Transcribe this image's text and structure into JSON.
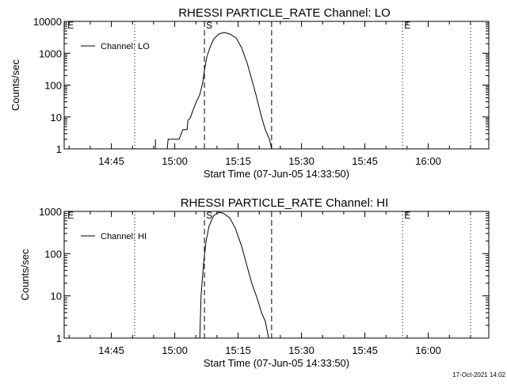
{
  "chart_data": [
    {
      "type": "line",
      "title": "RHESSI PARTICLE_RATE Channel: LO",
      "xlabel": "Start Time (07-Jun-05 14:33:50)",
      "ylabel": "Counts/sec",
      "x_units": "minutes since 14:33:50",
      "xlim": [
        0,
        100.5
      ],
      "ylim": [
        1,
        10000
      ],
      "yscale": "log",
      "x_ticks": [
        {
          "v": 11.17,
          "label": "14:45"
        },
        {
          "v": 26.17,
          "label": "15:00"
        },
        {
          "v": 41.17,
          "label": "15:15"
        },
        {
          "v": 56.17,
          "label": "15:30"
        },
        {
          "v": 71.17,
          "label": "15:45"
        },
        {
          "v": 86.17,
          "label": "16:00"
        }
      ],
      "y_ticks": [
        {
          "v": 1,
          "label": "1"
        },
        {
          "v": 10,
          "label": "10"
        },
        {
          "v": 100,
          "label": "100"
        },
        {
          "v": 1000,
          "label": "1000"
        },
        {
          "v": 10000,
          "label": "10000"
        }
      ],
      "legend": {
        "label": "Channel: LO",
        "placement": "top-left"
      },
      "markers": [
        {
          "x": 0.4,
          "style": "none",
          "label": "E"
        },
        {
          "x": 16.7,
          "style": "dotted",
          "label": ""
        },
        {
          "x": 33.2,
          "style": "dashed",
          "label": "S"
        },
        {
          "x": 49.1,
          "style": "dashed",
          "label": ""
        },
        {
          "x": 80.1,
          "style": "dotted",
          "label": "E"
        },
        {
          "x": 96.2,
          "style": "dotted",
          "label": ""
        }
      ],
      "segments": [
        [
          [
            21.6,
            1
          ],
          [
            21.6,
            2
          ]
        ],
        [
          [
            24.4,
            1
          ],
          [
            24.6,
            2
          ],
          [
            27.2,
            2
          ],
          [
            27.7,
            3
          ],
          [
            28.1,
            4
          ],
          [
            29.1,
            4
          ],
          [
            29.3,
            8
          ],
          [
            29.8,
            9
          ],
          [
            30.4,
            15
          ],
          [
            31.3,
            30
          ],
          [
            32.1,
            50
          ],
          [
            32.8,
            120
          ],
          [
            33.2,
            300
          ],
          [
            33.8,
            800
          ],
          [
            34.5,
            1500
          ],
          [
            35.4,
            2800
          ],
          [
            36.6,
            4000
          ],
          [
            37.9,
            4500
          ],
          [
            39.2,
            4000
          ],
          [
            40.7,
            3000
          ],
          [
            42.0,
            1500
          ],
          [
            43.3,
            500
          ],
          [
            44.4,
            150
          ],
          [
            45.4,
            50
          ],
          [
            46.7,
            10
          ],
          [
            47.6,
            4
          ],
          [
            48.6,
            2
          ],
          [
            49.1,
            1
          ]
        ]
      ]
    },
    {
      "type": "line",
      "title": "RHESSI PARTICLE_RATE Channel: HI",
      "xlabel": "Start Time (07-Jun-05 14:33:50)",
      "ylabel": "Counts/sec",
      "x_units": "minutes since 14:33:50",
      "xlim": [
        0,
        100.5
      ],
      "ylim": [
        1,
        1000
      ],
      "yscale": "log",
      "x_ticks": [
        {
          "v": 11.17,
          "label": "14:45"
        },
        {
          "v": 26.17,
          "label": "15:00"
        },
        {
          "v": 41.17,
          "label": "15:15"
        },
        {
          "v": 56.17,
          "label": "15:30"
        },
        {
          "v": 71.17,
          "label": "15:45"
        },
        {
          "v": 86.17,
          "label": "16:00"
        }
      ],
      "y_ticks": [
        {
          "v": 1,
          "label": "1"
        },
        {
          "v": 10,
          "label": "10"
        },
        {
          "v": 100,
          "label": "100"
        },
        {
          "v": 1000,
          "label": "1000"
        }
      ],
      "legend": {
        "label": "Channel: HI",
        "placement": "top-left"
      },
      "markers": [
        {
          "x": 0.4,
          "style": "none",
          "label": "E"
        },
        {
          "x": 16.7,
          "style": "dotted",
          "label": ""
        },
        {
          "x": 33.2,
          "style": "dashed",
          "label": "S"
        },
        {
          "x": 49.1,
          "style": "dashed",
          "label": ""
        },
        {
          "x": 80.1,
          "style": "dotted",
          "label": "E"
        },
        {
          "x": 96.2,
          "style": "dotted",
          "label": ""
        }
      ],
      "segments": [
        [
          [
            32.1,
            1
          ],
          [
            32.4,
            10
          ],
          [
            33.0,
            60
          ],
          [
            33.6,
            200
          ],
          [
            34.3,
            450
          ],
          [
            35.4,
            800
          ],
          [
            36.6,
            950
          ],
          [
            37.7,
            900
          ],
          [
            39.2,
            700
          ],
          [
            40.5,
            400
          ],
          [
            42.0,
            150
          ],
          [
            43.3,
            50
          ],
          [
            44.4,
            20
          ],
          [
            45.8,
            8
          ],
          [
            46.7,
            4
          ],
          [
            47.6,
            2.5
          ],
          [
            48.4,
            1
          ]
        ]
      ]
    }
  ],
  "footer": {
    "timestamp": "17-Oct-2021 14:02"
  }
}
